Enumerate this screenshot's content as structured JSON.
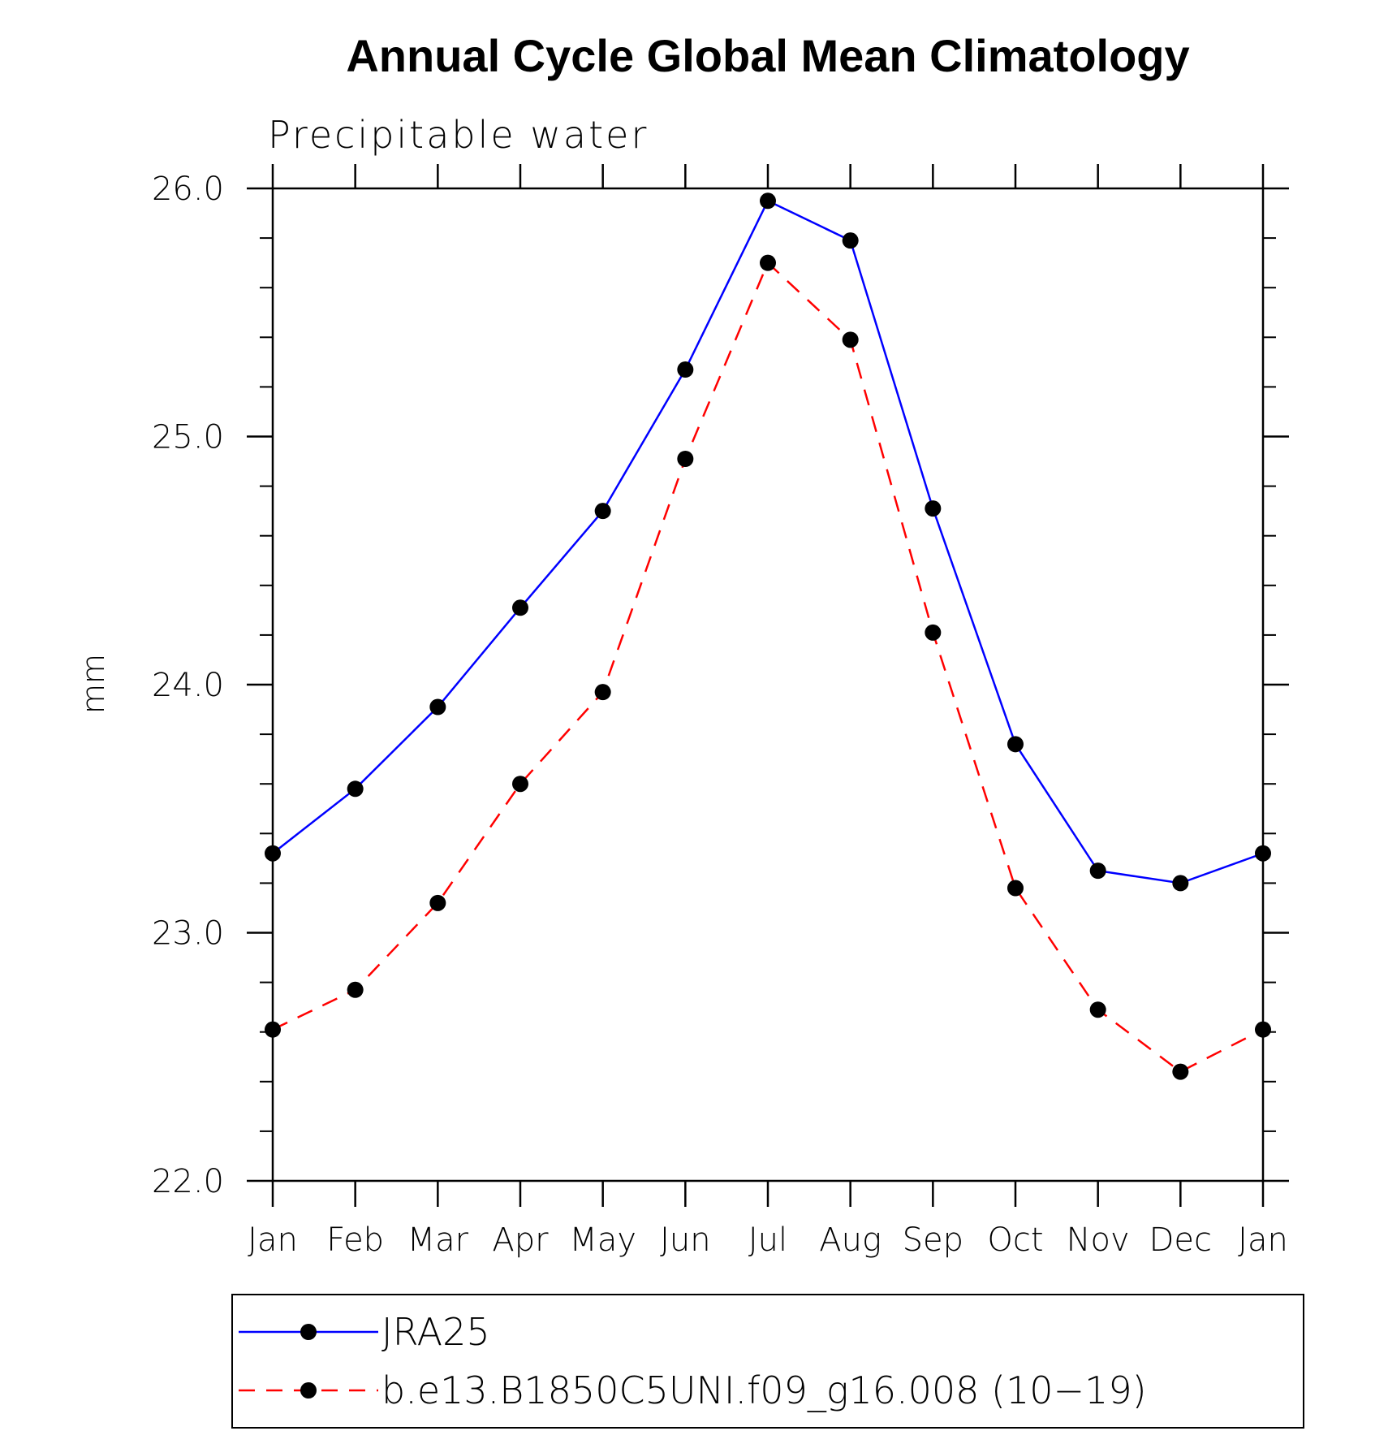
{
  "chart_data": {
    "type": "line",
    "title": "Annual Cycle Global Mean Climatology",
    "subtitle": "Precipitable water",
    "ylabel": "mm",
    "xlabel": "",
    "ylim": [
      22.0,
      26.0
    ],
    "y_major_ticks": [
      "22.0",
      "23.0",
      "24.0",
      "25.0",
      "26.0"
    ],
    "y_major_values": [
      22.0,
      23.0,
      24.0,
      25.0,
      26.0
    ],
    "y_minor_step": 0.2,
    "categories": [
      "Jan",
      "Feb",
      "Mar",
      "Apr",
      "May",
      "Jun",
      "Jul",
      "Aug",
      "Sep",
      "Oct",
      "Nov",
      "Dec",
      "Jan"
    ],
    "grid": false,
    "legend_position": "bottom",
    "series": [
      {
        "name": "JRA25",
        "color": "#0000ff",
        "dash": "solid",
        "marker": "filled-circle",
        "values": [
          23.32,
          23.58,
          23.91,
          24.31,
          24.7,
          25.27,
          25.95,
          25.79,
          24.71,
          23.76,
          23.25,
          23.2,
          23.32
        ]
      },
      {
        "name": "b.e13.B1850C5UNI.f09_g16.008 (10−19)",
        "color": "#ff0000",
        "dash": "dashed",
        "marker": "filled-circle",
        "values": [
          22.61,
          22.77,
          23.12,
          23.6,
          23.97,
          24.91,
          25.7,
          25.39,
          24.21,
          23.18,
          22.69,
          22.44,
          22.61
        ]
      }
    ]
  }
}
